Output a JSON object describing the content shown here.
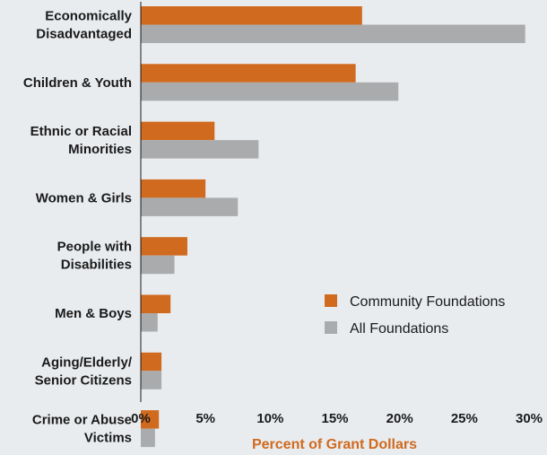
{
  "chart_data": {
    "type": "bar",
    "orientation": "horizontal",
    "categories": [
      [
        "Economically",
        "Disadvantaged"
      ],
      [
        "Children & Youth"
      ],
      [
        "Ethnic or Racial",
        "Minorities"
      ],
      [
        "Women & Girls"
      ],
      [
        "People with",
        "Disabilities"
      ],
      [
        "Men & Boys"
      ],
      [
        "Aging/Elderly/",
        "Senior Citizens"
      ],
      [
        "Crime or Abuse",
        "Victims"
      ]
    ],
    "series": [
      {
        "name": "Community Foundations",
        "color": "#d06a1e",
        "values": [
          17.1,
          16.6,
          5.7,
          5.0,
          3.6,
          2.3,
          1.6,
          1.4
        ]
      },
      {
        "name": "All Foundations",
        "color": "#aaabad",
        "values": [
          29.7,
          19.9,
          9.1,
          7.5,
          2.6,
          1.3,
          1.6,
          1.1
        ]
      }
    ],
    "xlabel": "Percent of Grant Dollars",
    "xlabel_color": "#d06a1e",
    "xlim": [
      0,
      30
    ],
    "xticks": [
      "0%",
      "5%",
      "10%",
      "15%",
      "20%",
      "25%",
      "30%"
    ],
    "grid": false,
    "legend_position": "right"
  }
}
